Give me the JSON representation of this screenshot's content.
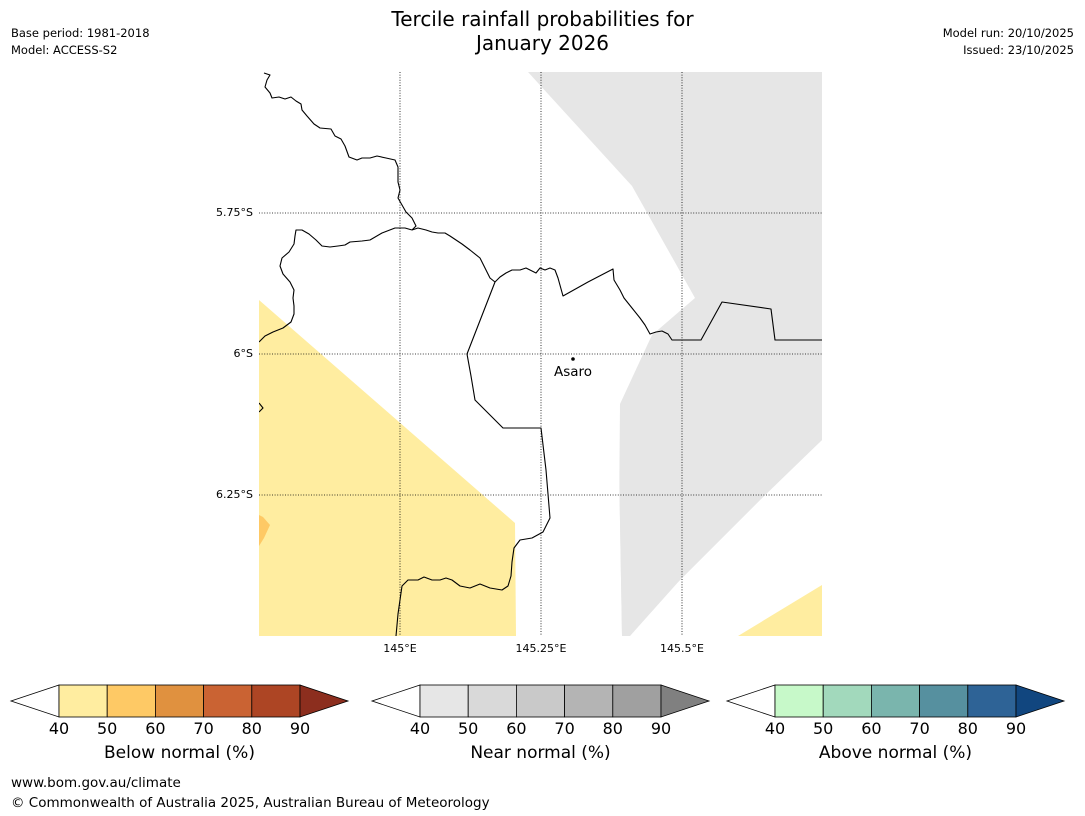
{
  "header": {
    "title_line1": "Tercile rainfall probabilities for",
    "title_line2": "January 2026",
    "base_period": "Base period: 1981-2018",
    "model": "Model: ACCESS-S2",
    "model_run": "Model run: 20/10/2025",
    "issued": "Issued: 23/10/2025"
  },
  "map": {
    "lat_labels": [
      "5.75°S",
      "6°S",
      "6.25°S"
    ],
    "lon_labels": [
      "145°E",
      "145.25°E",
      "145.5°E"
    ],
    "place": {
      "name": "Asaro"
    },
    "colors": {
      "below_light": "#ffeda0",
      "below_mid": "#fec965",
      "near_light": "#e6e6e6",
      "border": "#000000",
      "grid": "#000000"
    }
  },
  "colorbars": [
    {
      "name": "below",
      "label": "Below normal (%)",
      "ticks": [
        "40",
        "50",
        "60",
        "70",
        "80",
        "90"
      ],
      "colors": [
        "#ffffff",
        "#ffeda0",
        "#fec965",
        "#e0913f",
        "#ca6333",
        "#ad4524",
        "#8c2e1e"
      ]
    },
    {
      "name": "near",
      "label": "Near normal (%)",
      "ticks": [
        "40",
        "50",
        "60",
        "70",
        "80",
        "90"
      ],
      "colors": [
        "#ffffff",
        "#e6e6e6",
        "#d9d9d9",
        "#c9c9c9",
        "#b4b4b4",
        "#a0a0a0",
        "#808080"
      ]
    },
    {
      "name": "above",
      "label": "Above normal (%)",
      "ticks": [
        "40",
        "50",
        "60",
        "70",
        "80",
        "90"
      ],
      "colors": [
        "#ffffff",
        "#c7f9c9",
        "#a2d9bc",
        "#7ab5ad",
        "#56909f",
        "#2e6396",
        "#11467f"
      ]
    }
  ],
  "footer": {
    "url": "www.bom.gov.au/climate",
    "copyright": "© Commonwealth of Australia 2025, Australian Bureau of Meteorology"
  }
}
